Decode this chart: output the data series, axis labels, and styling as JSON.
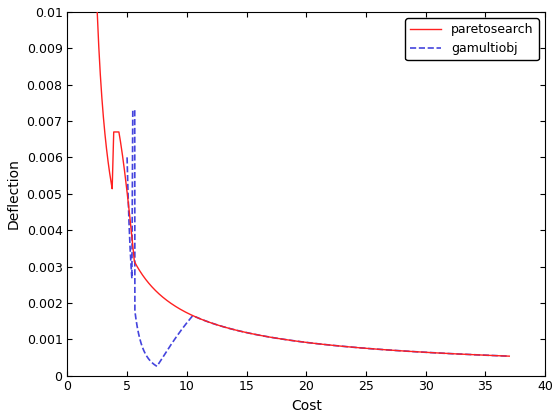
{
  "title": "",
  "xlabel": "Cost",
  "ylabel": "Deflection",
  "xlim": [
    0,
    40
  ],
  "ylim": [
    0,
    0.01
  ],
  "yticks": [
    0,
    0.001,
    0.002,
    0.003,
    0.004,
    0.005,
    0.006,
    0.007,
    0.008,
    0.009,
    0.01
  ],
  "xticks": [
    0,
    5,
    10,
    15,
    20,
    25,
    30,
    35,
    40
  ],
  "line1_color": "#FF2020",
  "line1_style": "-",
  "line1_label": "paretosearch",
  "line1_linewidth": 1.0,
  "line2_color": "#4444DD",
  "line2_style": "--",
  "line2_label": "gamultiobj",
  "line2_linewidth": 1.2,
  "legend_loc": "upper right",
  "background_color": "#FFFFFF"
}
